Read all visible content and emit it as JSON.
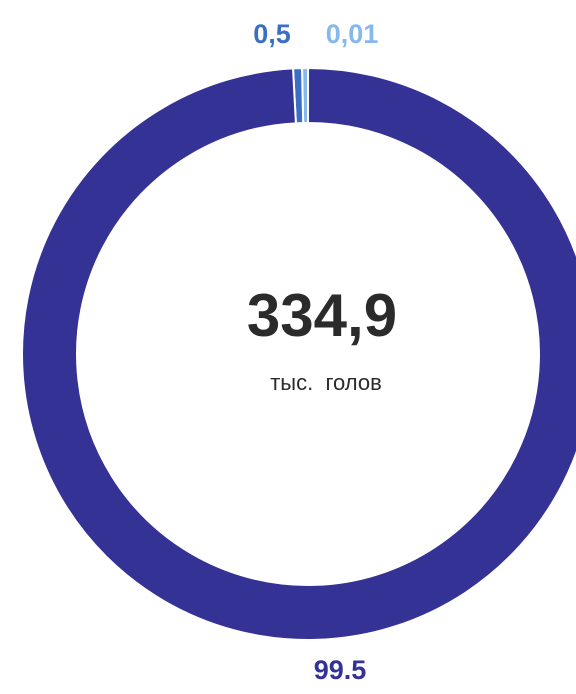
{
  "chart_data": {
    "type": "donut",
    "categories": [
      null,
      null,
      null
    ],
    "values": [
      99.5,
      0.5,
      0.01
    ],
    "value_labels": [
      "99.5",
      "0,5",
      "0,01"
    ],
    "colors": [
      "#353295",
      "#3a6fc4",
      "#85b8ec"
    ],
    "center_value": "334,9",
    "center_label": "тыс.  голов"
  }
}
